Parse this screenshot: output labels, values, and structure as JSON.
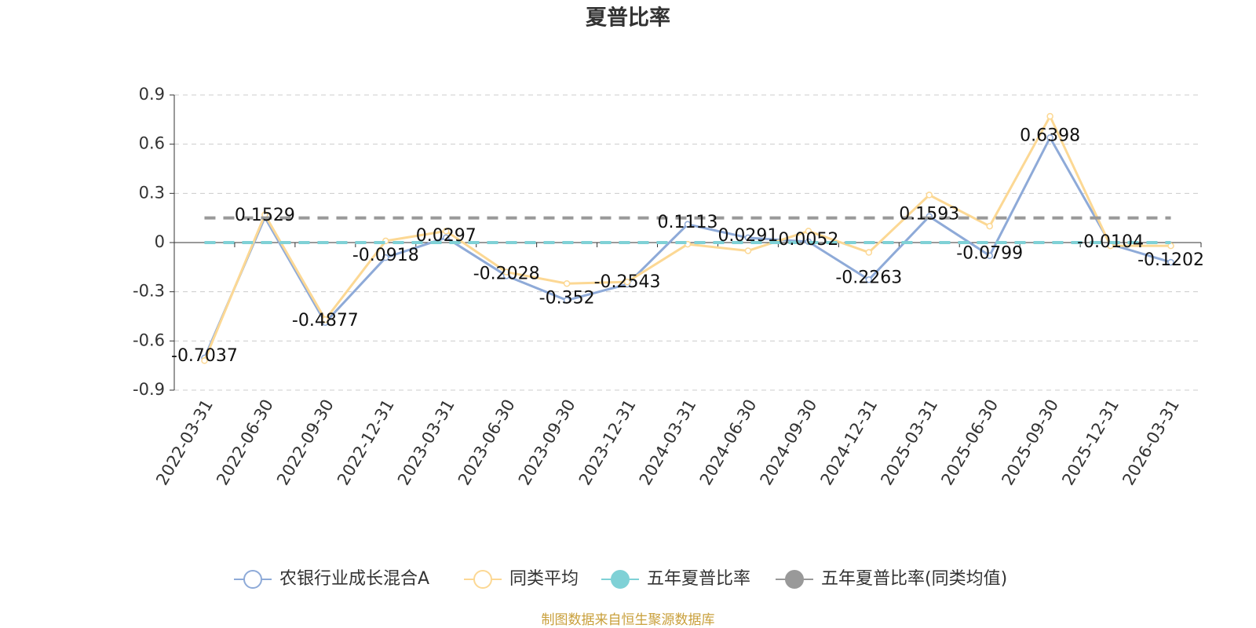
{
  "chart_data": {
    "type": "line",
    "title": "夏普比率",
    "footnote": "制图数据来自恒生聚源数据库",
    "categories": [
      "2022-03-31",
      "2022-06-30",
      "2022-09-30",
      "2022-12-31",
      "2023-03-31",
      "2023-06-30",
      "2023-09-30",
      "2023-12-31",
      "2024-03-31",
      "2024-06-30",
      "2024-09-30",
      "2024-12-31",
      "2025-03-31",
      "2025-06-30",
      "2025-09-30",
      "2025-12-31",
      "2026-03-31"
    ],
    "series": [
      {
        "name": "农银行业成长混合A",
        "color": "#8eaad8",
        "values": [
          -0.7037,
          0.1529,
          -0.4877,
          -0.0918,
          0.0297,
          -0.2028,
          -0.352,
          -0.2543,
          0.1113,
          0.0291,
          0.0052,
          -0.2263,
          0.1593,
          -0.0799,
          0.6398,
          -0.0104,
          -0.1202
        ]
      },
      {
        "name": "同类平均",
        "color": "#fcd894",
        "values": [
          -0.72,
          0.17,
          -0.47,
          0.01,
          0.07,
          -0.18,
          -0.25,
          -0.24,
          -0.01,
          -0.05,
          0.07,
          -0.06,
          0.29,
          0.1,
          0.77,
          -0.02,
          -0.02
        ]
      },
      {
        "name": "五年夏普比率",
        "color": "#7fd1d6",
        "values": [
          0,
          0,
          0,
          0,
          0,
          0,
          0,
          0,
          0,
          0,
          0,
          0,
          0,
          0,
          0,
          0,
          0
        ]
      },
      {
        "name": "五年夏普比率(同类均值)",
        "color": "#999999",
        "values": [
          0.15,
          0.15,
          0.15,
          0.15,
          0.15,
          0.15,
          0.15,
          0.15,
          0.15,
          0.15,
          0.15,
          0.15,
          0.15,
          0.15,
          0.15,
          0.15,
          0.15
        ]
      }
    ],
    "ylim": [
      -0.9,
      0.9
    ],
    "yticks": [
      -0.9,
      -0.6,
      -0.3,
      0,
      0.3,
      0.6,
      0.9
    ],
    "grid": true
  }
}
